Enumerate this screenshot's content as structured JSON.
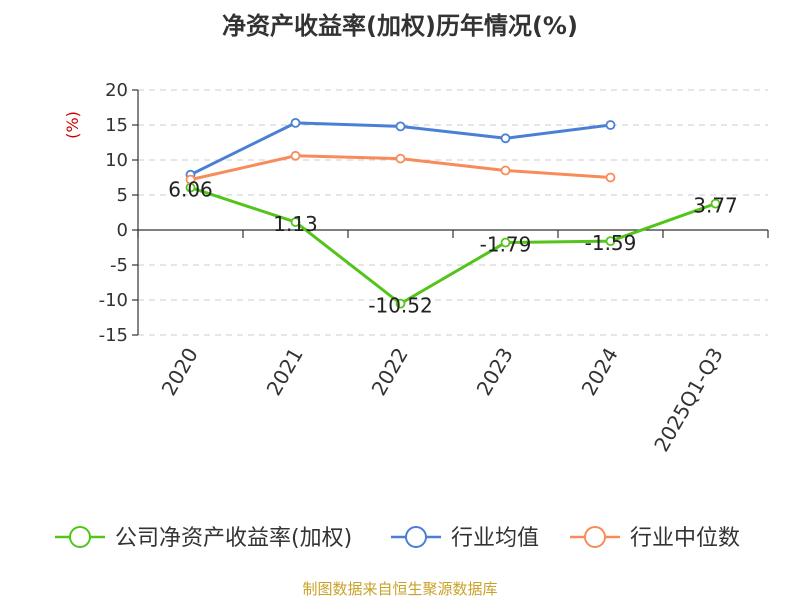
{
  "chart_data": {
    "type": "line",
    "title": "净资产收益率(加权)历年情况(%)",
    "ylabel": "(%)",
    "xlabel": "",
    "categories": [
      "2020",
      "2021",
      "2022",
      "2023",
      "2024",
      "2025Q1-Q3"
    ],
    "ylim": [
      -15,
      20
    ],
    "yticks": [
      -15,
      -10,
      -5,
      0,
      5,
      10,
      15,
      20
    ],
    "grid": true,
    "legend_position": "bottom",
    "series": [
      {
        "name": "公司净资产收益率(加权)",
        "color": "#52c41a",
        "values": [
          6.06,
          1.13,
          -10.52,
          -1.79,
          -1.59,
          3.77
        ],
        "labels": [
          "6.06",
          "1.13",
          "-10.52",
          "-1.79",
          "-1.59",
          "3.77"
        ]
      },
      {
        "name": "行业均值",
        "color": "#4a7fd6",
        "values": [
          7.9,
          15.3,
          14.8,
          13.1,
          15.0,
          null
        ]
      },
      {
        "name": "行业中位数",
        "color": "#f78c5a",
        "values": [
          7.2,
          10.6,
          10.2,
          8.5,
          7.5,
          null
        ]
      }
    ]
  },
  "footer": {
    "source": "制图数据来自恒生聚源数据库"
  }
}
